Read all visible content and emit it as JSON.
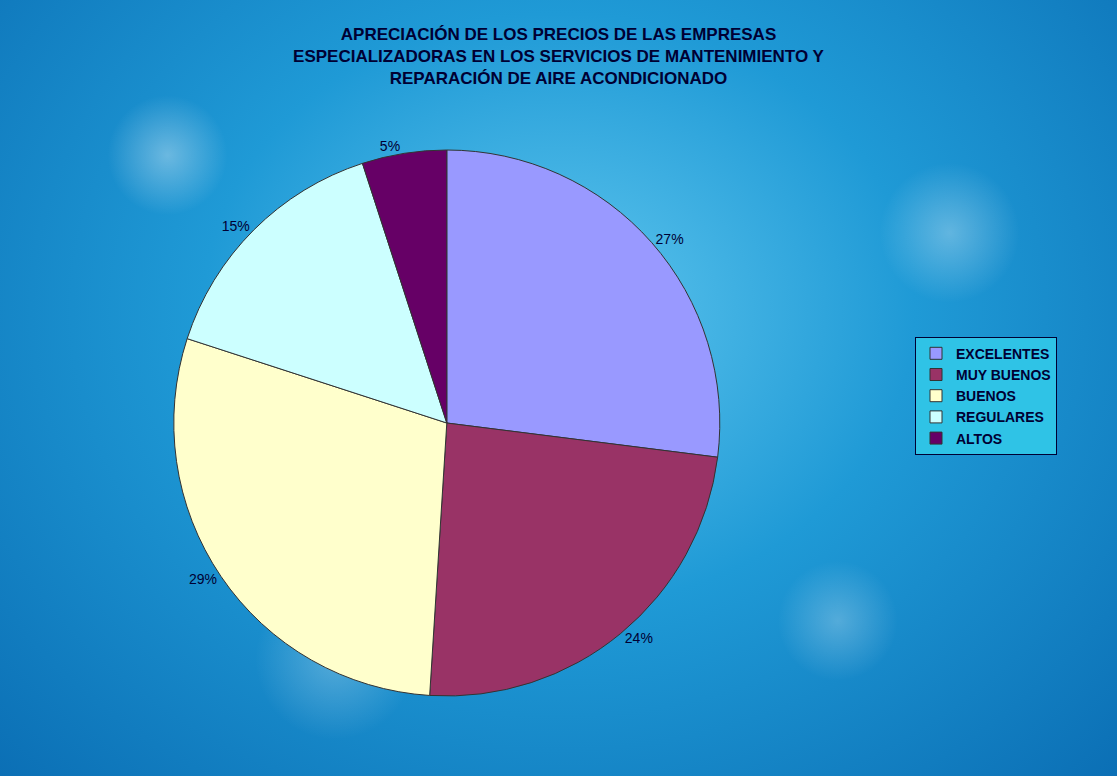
{
  "chart_data": {
    "type": "pie",
    "title": "APRECIACIÓN DE LOS PRECIOS DE LAS EMPRESAS ESPECIALIZADORAS EN LOS SERVICIOS DE MANTENIMIENTO Y REPARACIÓN DE AIRE ACONDICIONADO",
    "categories": [
      "EXCELENTES",
      "MUY BUENOS",
      "BUENOS",
      "REGULARES",
      "ALTOS"
    ],
    "values": [
      27,
      24,
      29,
      15,
      5
    ],
    "value_labels": [
      "27%",
      "24%",
      "29%",
      "15%",
      "5%"
    ],
    "colors": [
      "#9999ff",
      "#993366",
      "#ffffcc",
      "#ccffff",
      "#660066"
    ],
    "data_labels": true,
    "legend": "right"
  }
}
